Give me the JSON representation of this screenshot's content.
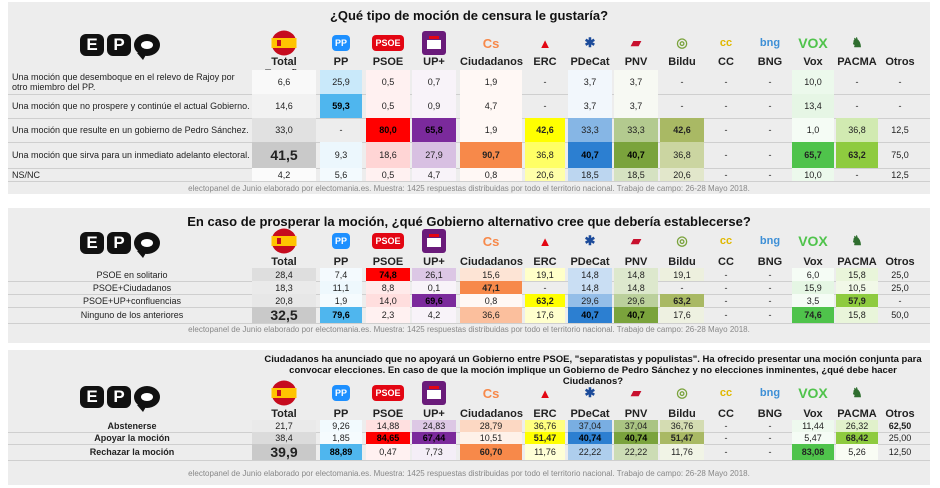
{
  "parties": [
    "Total España",
    "PP",
    "PSOE",
    "UP+",
    "Ciudadanos",
    "ERC",
    "PDeCat",
    "PNV",
    "Bildu",
    "CC",
    "BNG",
    "Vox",
    "PACMA",
    "Otros"
  ],
  "icons": [
    "spain-flag-icon",
    "pp-logo-icon",
    "psoe-logo-icon",
    "podemos-logo-icon",
    "ciudadanos-logo-icon",
    "erc-logo-icon",
    "pdecat-logo-icon",
    "pnv-logo-icon",
    "bildu-logo-icon",
    "cc-logo-icon",
    "bng-logo-icon",
    "vox-logo-icon",
    "pacma-logo-icon",
    ""
  ],
  "icon_text": {
    "pp": "PP",
    "psoe": "PSOE",
    "cs": "Cs",
    "erc": "▲",
    "pdecat": "✱",
    "pnv": "▰",
    "bildu": "◎",
    "cc": "cc",
    "bng": "bng",
    "vox": "VOX",
    "pacma": "♞"
  },
  "logo": {
    "b1": "E",
    "b2": "P"
  },
  "colors": {
    "total": "#c9c9c9",
    "pp": "#4fb6ee",
    "psoe": "#ff0000",
    "up": "#7b2a9c",
    "cs": "#f7894a",
    "erc": "#ffff00",
    "pdecat": "#2c7fd1",
    "pnv": "#7aa33c",
    "bildu": "#a9b964",
    "vox": "#4fc34b",
    "pacma": "#8ecb3f"
  },
  "footer": "electopanel de Junio elaborado por electomania.es. Muestra: 1425 respuestas distribuidas por todo el territorio nacional. Trabajo de campo: 26-28 Mayo 2018.",
  "chart_data": [
    {
      "type": "table",
      "title": "¿Qué tipo de moción de censura le gustaría?",
      "columns": [
        "Total España",
        "PP",
        "PSOE",
        "UP+",
        "Ciudadanos",
        "ERC",
        "PDeCat",
        "PNV",
        "Bildu",
        "CC",
        "BNG",
        "Vox",
        "PACMA",
        "Otros"
      ],
      "rows": [
        {
          "label": "Una moción que desemboque en el relevo de Rajoy por otro miembro del PP.",
          "values": [
            "6,6",
            "25,9",
            "0,5",
            "0,7",
            "1,9",
            "-",
            "3,7",
            "3,7",
            "-",
            "-",
            "-",
            "10,0",
            "-",
            "-"
          ]
        },
        {
          "label": "Una moción que no prospere y continúe el actual Gobierno.",
          "values": [
            "14,6",
            "59,3",
            "0,5",
            "0,9",
            "4,7",
            "-",
            "3,7",
            "3,7",
            "-",
            "-",
            "-",
            "13,4",
            "-",
            "-"
          ]
        },
        {
          "label": "Una moción que resulte en un gobierno de Pedro Sánchez.",
          "values": [
            "33,0",
            "-",
            "80,0",
            "65,8",
            "1,9",
            "42,6",
            "33,3",
            "33,3",
            "42,6",
            "-",
            "-",
            "1,0",
            "36,8",
            "12,5"
          ]
        },
        {
          "label": "Una moción que sirva para un inmediato adelanto electoral.",
          "values": [
            "41,5",
            "9,3",
            "18,6",
            "27,9",
            "90,7",
            "36,8",
            "40,7",
            "40,7",
            "36,8",
            "-",
            "-",
            "65,7",
            "63,2",
            "75,0"
          ]
        },
        {
          "label": "NS/NC",
          "values": [
            "4,2",
            "5,6",
            "0,5",
            "4,7",
            "0,8",
            "20,6",
            "18,5",
            "18,5",
            "20,6",
            "-",
            "-",
            "10,0",
            "-",
            "12,5"
          ]
        }
      ]
    },
    {
      "type": "table",
      "title": "En caso de prosperar la moción, ¿qué Gobierno alternativo cree que debería establecerse?",
      "columns": [
        "Total España",
        "PP",
        "PSOE",
        "UP+",
        "Ciudadanos",
        "ERC",
        "PDeCat",
        "PNV",
        "Bildu",
        "CC",
        "BNG",
        "Vox",
        "PACMA",
        "Otros"
      ],
      "rows": [
        {
          "label": "PSOE en solitario",
          "values": [
            "28,4",
            "7,4",
            "74,8",
            "26,1",
            "15,6",
            "19,1",
            "14,8",
            "14,8",
            "19,1",
            "-",
            "-",
            "6,0",
            "15,8",
            "25,0"
          ]
        },
        {
          "label": "PSOE+Ciudadanos",
          "values": [
            "18,3",
            "11,1",
            "8,8",
            "0,1",
            "47,1",
            "-",
            "14,8",
            "14,8",
            "-",
            "-",
            "-",
            "15,9",
            "10,5",
            "25,0"
          ]
        },
        {
          "label": "PSOE+UP+confluencias",
          "values": [
            "20,8",
            "1,9",
            "14,0",
            "69,6",
            "0,8",
            "63,2",
            "29,6",
            "29,6",
            "63,2",
            "-",
            "-",
            "3,5",
            "57,9",
            "-"
          ]
        },
        {
          "label": "Ninguno de los anteriores",
          "values": [
            "32,5",
            "79,6",
            "2,3",
            "4,2",
            "36,6",
            "17,6",
            "40,7",
            "40,7",
            "17,6",
            "-",
            "-",
            "74,6",
            "15,8",
            "50,0"
          ]
        }
      ]
    },
    {
      "type": "table",
      "title": "Ciudadanos ha anunciado que no apoyará un Gobierno entre PSOE, \"separatistas y populistas\". Ha ofrecido presentar una moción conjunta para convocar elecciones. En caso de que la moción implique un Gobierno de Pedro Sánchez y no elecciones inminentes, ¿qué debe hacer Ciudadanos?",
      "columns": [
        "Total España",
        "PP",
        "PSOE",
        "UP+",
        "Ciudadanos",
        "ERC",
        "PDeCat",
        "PNV",
        "Bildu",
        "CC",
        "BNG",
        "Vox",
        "PACMA",
        "Otros"
      ],
      "rows": [
        {
          "label": "Abstenerse",
          "values": [
            "21,7",
            "9,26",
            "14,88",
            "24,83",
            "28,79",
            "36,76",
            "37,04",
            "37,04",
            "36,76",
            "-",
            "-",
            "11,44",
            "26,32",
            "62,50"
          ]
        },
        {
          "label": "Apoyar la moción",
          "values": [
            "38,4",
            "1,85",
            "84,65",
            "67,44",
            "10,51",
            "51,47",
            "40,74",
            "40,74",
            "51,47",
            "-",
            "-",
            "5,47",
            "68,42",
            "25,00"
          ]
        },
        {
          "label": "Rechazar la moción",
          "values": [
            "39,9",
            "88,89",
            "0,47",
            "7,73",
            "60,70",
            "11,76",
            "22,22",
            "22,22",
            "11,76",
            "-",
            "-",
            "83,08",
            "5,26",
            "12,50"
          ]
        }
      ]
    }
  ]
}
